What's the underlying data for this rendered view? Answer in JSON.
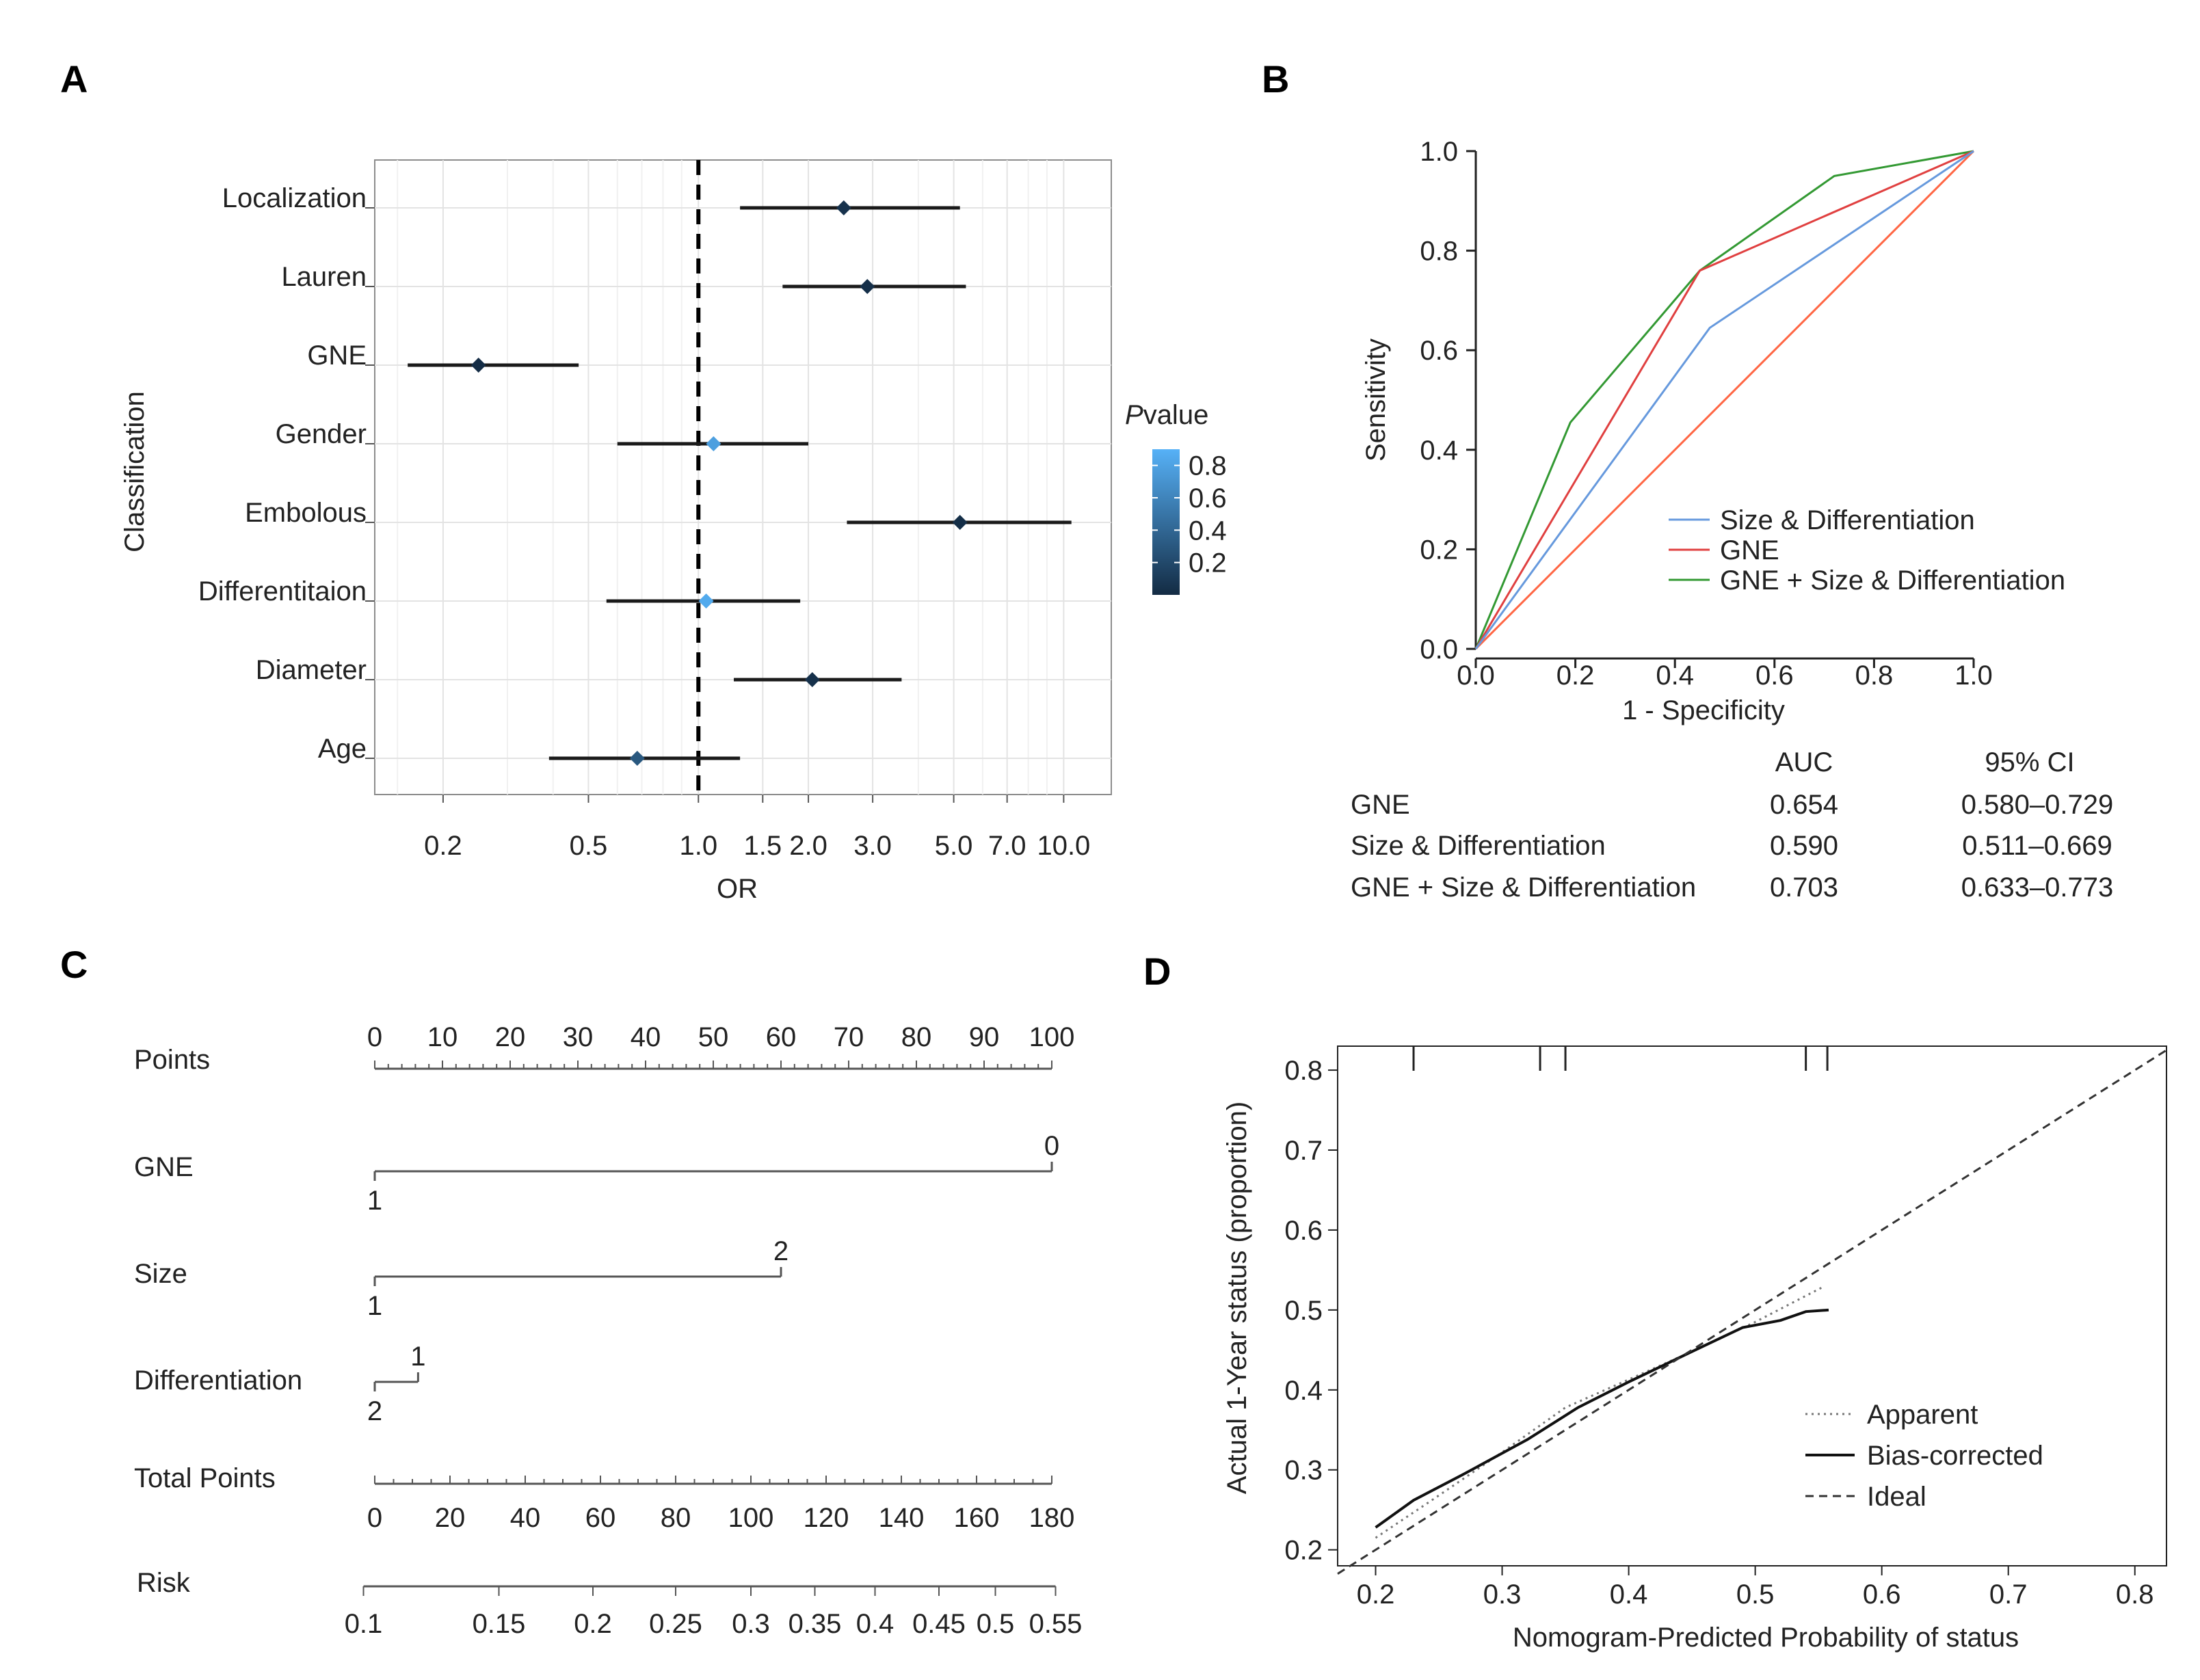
{
  "panels": {
    "A": "A",
    "B": "B",
    "C": "C",
    "D": "D"
  },
  "chart_data": [
    {
      "type": "forest",
      "panel": "A",
      "xlabel": "OR",
      "ylabel": "Classification",
      "xscale": "log",
      "xticks": [
        0.2,
        0.5,
        1.0,
        1.5,
        2.0,
        3.0,
        5.0,
        7.0,
        10.0
      ],
      "xtick_labels": [
        "0.2",
        "0.5",
        "1.0",
        "1.5",
        "2.0",
        "3.0",
        "5.0",
        "7.0",
        "10.0"
      ],
      "xlim": [
        0.13,
        13.5
      ],
      "reference_line": 1.0,
      "grid": true,
      "rows": [
        {
          "label": "Localization",
          "or": 2.5,
          "lo": 1.3,
          "hi": 5.2,
          "p": 0.05
        },
        {
          "label": "Lauren",
          "or": 2.9,
          "lo": 1.7,
          "hi": 5.4,
          "p": 0.03
        },
        {
          "label": "GNE",
          "or": 0.25,
          "lo": 0.16,
          "hi": 0.47,
          "p": 0.01
        },
        {
          "label": "Gender",
          "or": 1.1,
          "lo": 0.6,
          "hi": 2.0,
          "p": 0.78
        },
        {
          "label": "Embolous",
          "or": 5.2,
          "lo": 2.55,
          "hi": 10.5,
          "p": 0.02
        },
        {
          "label": "Differentitaion",
          "or": 1.05,
          "lo": 0.56,
          "hi": 1.9,
          "p": 0.85
        },
        {
          "label": "Diameter",
          "or": 2.05,
          "lo": 1.25,
          "hi": 3.6,
          "p": 0.04
        },
        {
          "label": "Age",
          "or": 0.68,
          "lo": 0.39,
          "hi": 1.3,
          "p": 0.3
        }
      ],
      "legend": {
        "title_italic": "P",
        "title_rest": "value",
        "ticks": [
          0.8,
          0.6,
          0.4,
          0.2
        ],
        "tick_labels": [
          "0.8",
          "0.6",
          "0.4",
          "0.2"
        ],
        "color_low": "#132B43",
        "color_high": "#56B1F7"
      }
    },
    {
      "type": "line",
      "panel": "B",
      "xlabel": "1 - Specificity",
      "ylabel": "Sensitivity",
      "xlim": [
        0,
        1
      ],
      "ylim": [
        0,
        1
      ],
      "xticks": [
        0,
        0.2,
        0.4,
        0.6,
        0.8,
        1.0
      ],
      "xtick_labels": [
        "0.0",
        "0.2",
        "0.4",
        "0.6",
        "0.8",
        "1.0"
      ],
      "yticks": [
        0,
        0.2,
        0.4,
        0.6,
        0.8,
        1.0
      ],
      "ytick_labels": [
        "0.0",
        "0.2",
        "0.4",
        "0.6",
        "0.8",
        "1.0"
      ],
      "series": [
        {
          "name": "Size & Differentiation",
          "color": "#6699dd",
          "x": [
            0,
            0.47,
            1.0
          ],
          "y": [
            0,
            0.645,
            1.0
          ]
        },
        {
          "name": "GNE",
          "color": "#e04040",
          "x": [
            0,
            0.45,
            1.0
          ],
          "y": [
            0,
            0.76,
            1.0
          ]
        },
        {
          "name": "GNE + Size & Differentiation",
          "color": "#339933",
          "x": [
            0,
            0.19,
            0.45,
            0.72,
            1.0
          ],
          "y": [
            0,
            0.455,
            0.76,
            0.95,
            1.0
          ]
        },
        {
          "name": "reference",
          "color": "#ff6644",
          "x": [
            0,
            1
          ],
          "y": [
            0,
            1
          ]
        }
      ],
      "legend_order": [
        "Size & Differentiation",
        "GNE",
        "GNE + Size & Differentiation"
      ],
      "table": {
        "headers": [
          "AUC",
          "95% CI"
        ],
        "rows": [
          {
            "label": "GNE",
            "auc": "0.654",
            "ci": "0.580–0.729"
          },
          {
            "label": "Size & Differentiation",
            "auc": "0.590",
            "ci": "0.511–0.669"
          },
          {
            "label": "GNE + Size & Differentiation",
            "auc": "0.703",
            "ci": "0.633–0.773"
          }
        ]
      }
    },
    {
      "type": "nomogram",
      "panel": "C",
      "scales": [
        {
          "name": "Points",
          "range": [
            0,
            100
          ],
          "labels": [
            "0",
            "10",
            "20",
            "30",
            "40",
            "50",
            "60",
            "70",
            "80",
            "90",
            "100"
          ],
          "values": [
            0,
            10,
            20,
            30,
            40,
            50,
            60,
            70,
            80,
            90,
            100
          ]
        },
        {
          "name": "GNE",
          "levels": [
            {
              "label": "1",
              "points": 0,
              "side": "below"
            },
            {
              "label": "0",
              "points": 100,
              "side": "above"
            }
          ]
        },
        {
          "name": "Size",
          "levels": [
            {
              "label": "1",
              "points": 0,
              "side": "below"
            },
            {
              "label": "2",
              "points": 60,
              "side": "above"
            }
          ]
        },
        {
          "name": "Differentiation",
          "levels": [
            {
              "label": "2",
              "points": 0,
              "side": "below"
            },
            {
              "label": "1",
              "points": 6.4,
              "side": "above"
            }
          ]
        },
        {
          "name": "Total Points",
          "range": [
            0,
            180
          ],
          "labels": [
            "0",
            "20",
            "40",
            "60",
            "80",
            "100",
            "120",
            "140",
            "160",
            "180"
          ],
          "values": [
            0,
            20,
            40,
            60,
            80,
            100,
            120,
            140,
            160,
            180
          ]
        },
        {
          "name": "Risk",
          "labels": [
            "0.1",
            "0.15",
            "0.2",
            "0.25",
            "0.3",
            "0.35",
            "0.4",
            "0.45",
            "0.5",
            "0.55"
          ],
          "values": [
            0.1,
            0.15,
            0.2,
            0.25,
            0.3,
            0.35,
            0.4,
            0.45,
            0.5,
            0.55
          ],
          "total_points_at": [
            -3,
            33,
            58,
            80,
            100,
            117,
            133,
            150,
            165,
            181
          ]
        }
      ]
    },
    {
      "type": "line",
      "panel": "D",
      "xlabel": "Nomogram-Predicted Probability of status",
      "ylabel": "Actual 1-Year status (proportion)",
      "xlim": [
        0.17,
        0.825
      ],
      "ylim": [
        0.18,
        0.83
      ],
      "xticks": [
        0.2,
        0.3,
        0.4,
        0.5,
        0.6,
        0.7,
        0.8
      ],
      "xtick_labels": [
        "0.2",
        "0.3",
        "0.4",
        "0.5",
        "0.6",
        "0.7",
        "0.8"
      ],
      "yticks": [
        0.2,
        0.3,
        0.4,
        0.5,
        0.6,
        0.7,
        0.8
      ],
      "ytick_labels": [
        "0.2",
        "0.3",
        "0.4",
        "0.5",
        "0.6",
        "0.7",
        "0.8"
      ],
      "rug_x": [
        0.23,
        0.33,
        0.35,
        0.54,
        0.557
      ],
      "series": [
        {
          "name": "Apparent",
          "style": "dotted",
          "x": [
            0.2,
            0.25,
            0.3,
            0.35,
            0.4,
            0.45,
            0.5,
            0.555
          ],
          "y": [
            0.215,
            0.268,
            0.322,
            0.378,
            0.413,
            0.448,
            0.485,
            0.53
          ]
        },
        {
          "name": "Bias-corrected",
          "style": "solid",
          "x": [
            0.2,
            0.23,
            0.27,
            0.32,
            0.36,
            0.4,
            0.45,
            0.49,
            0.52,
            0.54,
            0.558
          ],
          "y": [
            0.228,
            0.262,
            0.295,
            0.338,
            0.378,
            0.41,
            0.448,
            0.478,
            0.487,
            0.498,
            0.5
          ]
        },
        {
          "name": "Ideal",
          "style": "dashed",
          "x": [
            0.17,
            0.825
          ],
          "y": [
            0.17,
            0.825
          ]
        }
      ],
      "legend_order": [
        "Apparent",
        "Bias-corrected",
        "Ideal"
      ]
    }
  ]
}
